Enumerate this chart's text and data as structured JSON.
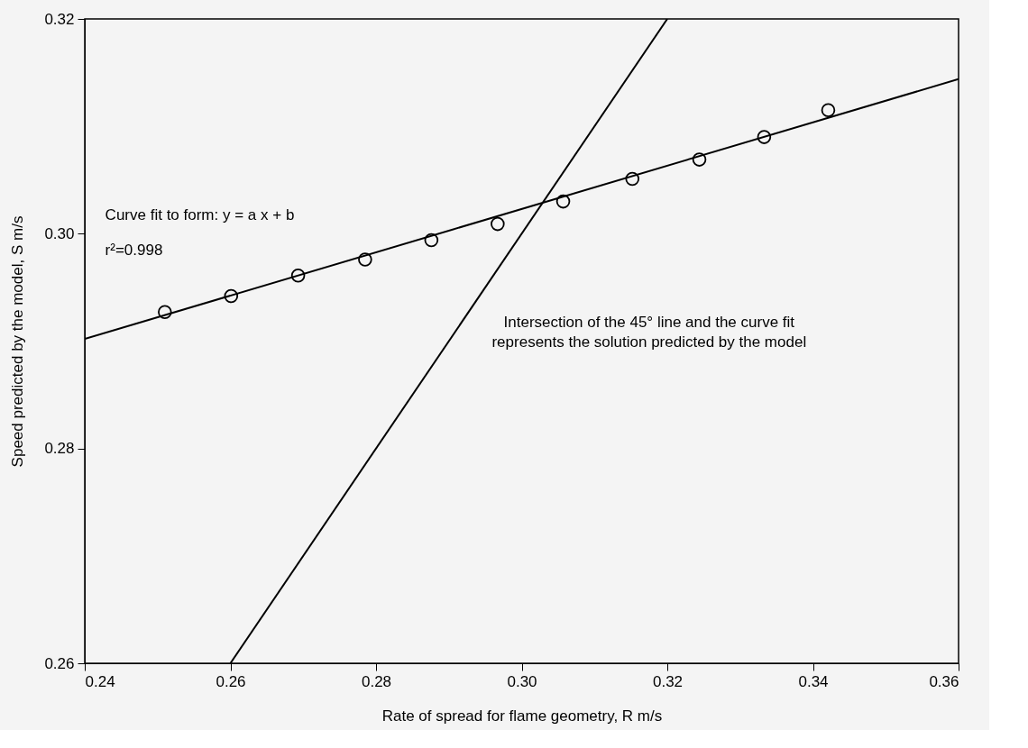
{
  "chart_data": {
    "type": "scatter",
    "xlabel": "Rate of spread for flame geometry, R  m/s",
    "ylabel": "Speed predicted by the model, S  m/s",
    "xlim": [
      0.24,
      0.36
    ],
    "xticks": [
      {
        "value": 0.24,
        "label": "0.24"
      },
      {
        "value": 0.26,
        "label": "0.26"
      },
      {
        "value": 0.28,
        "label": "0.28"
      },
      {
        "value": 0.3,
        "label": "0.30"
      },
      {
        "value": 0.32,
        "label": "0.32"
      },
      {
        "value": 0.34,
        "label": "0.34"
      },
      {
        "value": 0.36,
        "label": "0.36"
      }
    ],
    "ylim": [
      0.26,
      0.32
    ],
    "yticks": [
      {
        "value": 0.26,
        "label": "0.26"
      },
      {
        "value": 0.28,
        "label": "0.28"
      },
      {
        "value": 0.3,
        "label": "0.30"
      },
      {
        "value": 0.32,
        "label": "0.32"
      }
    ],
    "grid": false,
    "marker": "circle",
    "series": [
      {
        "color": "#000000",
        "x": [
          0.251,
          0.2601,
          0.2693,
          0.2785,
          0.2876,
          0.2967,
          0.3057,
          0.3152,
          0.3244,
          0.3333,
          0.3421
        ],
        "values": [
          0.2927,
          0.2942,
          0.2961,
          0.2976,
          0.2994,
          0.3009,
          0.303,
          0.3051,
          0.3069,
          0.309,
          0.3115
        ]
      },
      {
        "type": "line",
        "color": "#000000",
        "marker": "none",
        "x": [
          0.24,
          0.36
        ],
        "values": [
          0.2902,
          0.3144
        ]
      },
      {
        "type": "line",
        "color": "#000000",
        "marker": "none",
        "x": [
          0.26,
          0.32
        ],
        "values": [
          0.26,
          0.32
        ]
      }
    ],
    "annotations": [
      "Curve fit to form:  y = a x + b",
      "r²=0.998",
      "Intersection of the 45° line and the curve fit",
      "represents the solution predicted by the model"
    ]
  }
}
